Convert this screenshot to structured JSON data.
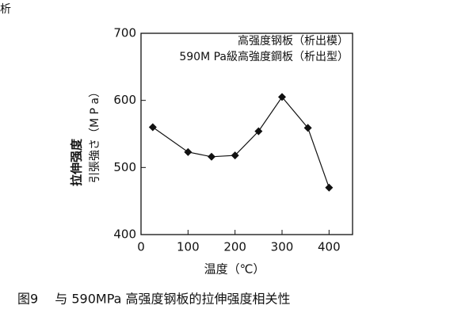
{
  "chart_data": {
    "type": "line",
    "corner_text": "析",
    "annotations": [
      "高强度钢板（析出模）",
      "590M Pa級高強度鋼板（析出型）"
    ],
    "ylabel": [
      "拉伸强度",
      "引張強さ（M P a）"
    ],
    "xlabel": "温度（℃）",
    "caption": "图9　 与 590MPa 高强度钢板的拉伸强度相关性",
    "x": [
      25,
      100,
      150,
      200,
      250,
      300,
      355,
      400
    ],
    "values": [
      560,
      523,
      516,
      518,
      554,
      605,
      559,
      470
    ],
    "color": "#111111",
    "xlim": [
      0,
      450
    ],
    "xticks": [
      0,
      100,
      200,
      300,
      400
    ],
    "ylim": [
      400,
      700
    ],
    "yticks": [
      400,
      500,
      600,
      700
    ]
  }
}
